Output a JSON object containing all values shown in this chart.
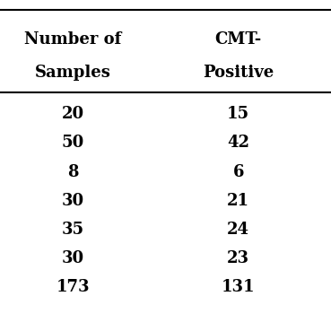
{
  "col1_header_line1": "Number of",
  "col1_header_line2": "Samples",
  "col2_header_line1": "CMT-",
  "col2_header_line2": "Positive",
  "col1_values": [
    "20",
    "50",
    "8",
    "30",
    "35",
    "30",
    "173"
  ],
  "col2_values": [
    "15",
    "42",
    "6",
    "21",
    "24",
    "23",
    "131"
  ],
  "background_color": "#ffffff",
  "text_color": "#000000",
  "line_color": "#000000",
  "font_size": 13,
  "header_font_size": 13
}
